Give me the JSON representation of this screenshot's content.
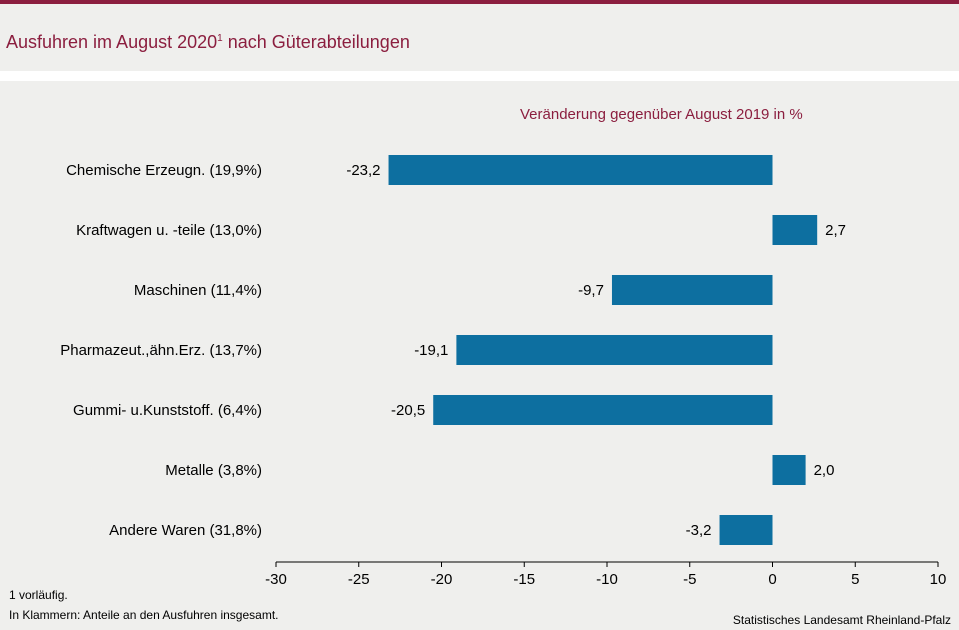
{
  "header": {
    "title_main": "Ausfuhren im August 2020",
    "title_sup": "1",
    "title_rest": " nach Güterabteilungen"
  },
  "footer": {
    "note1": "1 vorläufig.",
    "note2": "In Klammern: Anteile an den Ausfuhren insgesamt.",
    "source": "Statistisches Landesamt Rheinland-Pfalz"
  },
  "colors": {
    "bar": "#0d6fa0",
    "accent": "#8b1e3f",
    "background": "#efefed"
  },
  "chart_data": {
    "type": "bar",
    "orientation": "horizontal",
    "title": "Veränderung gegenüber August 2019 in %",
    "categories": [
      "Chemische Erzeugn. (19,9%)",
      "Kraftwagen u. -teile (13,0%)",
      "Maschinen (11,4%)",
      "Pharmazeut.,ähn.Erz. (13,7%)",
      "Gummi- u.Kunststoff. (6,4%)",
      "Metalle (3,8%)",
      "Andere Waren (31,8%)"
    ],
    "values": [
      -23.2,
      2.7,
      -9.7,
      -19.1,
      -20.5,
      2.0,
      -3.2
    ],
    "value_labels": [
      "-23,2",
      "2,7",
      "-9,7",
      "-19,1",
      "-20,5",
      "2,0",
      "-3,2"
    ],
    "xlim": [
      -30,
      10
    ],
    "xticks": [
      -30,
      -25,
      -20,
      -15,
      -10,
      -5,
      0,
      5,
      10
    ],
    "xtick_labels": [
      "-30",
      "-25",
      "-20",
      "-15",
      "-10",
      "-5",
      "0",
      "5",
      "10"
    ],
    "grid": false
  }
}
